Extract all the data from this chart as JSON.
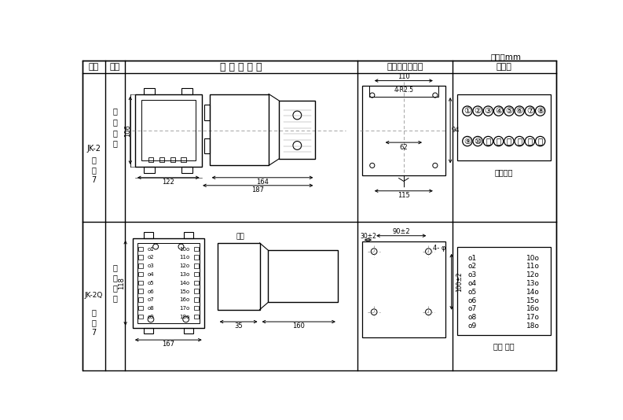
{
  "title_unit": "单位：mm",
  "col_headers": [
    "图号",
    "结构",
    "外 形 尺 寸 图",
    "安装开孔尺寸图",
    "端子图"
  ],
  "row1_label1": "JK-2",
  "row1_label2": [
    "附",
    "图",
    "7"
  ],
  "row1_struct": [
    "板",
    "后",
    "接",
    "线"
  ],
  "row2_label1": "JK-2Q",
  "row2_label2": [
    "附",
    "图",
    "7"
  ],
  "row2_struct": [
    "板",
    "前",
    "接",
    "线"
  ],
  "bg_color": "#ffffff",
  "line_color": "#000000"
}
